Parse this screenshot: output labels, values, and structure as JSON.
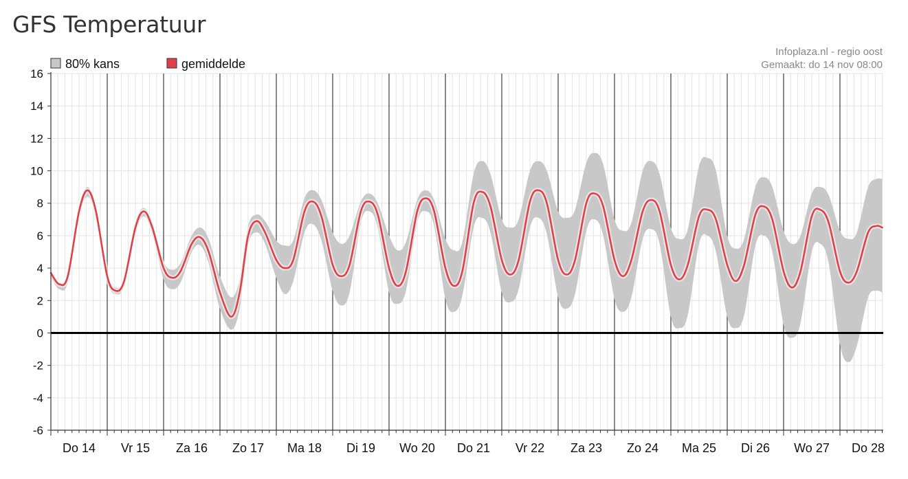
{
  "page": {
    "title": "GFS Temperatuur"
  },
  "chart_data": {
    "type": "area",
    "title": "",
    "xlabel": "",
    "ylabel": "",
    "ylim": [
      -6,
      16
    ],
    "yticks": [
      -6,
      -4,
      -2,
      0,
      2,
      4,
      6,
      8,
      10,
      12,
      14,
      16
    ],
    "grid": true,
    "legend_placement": "top-left",
    "source": "Infoplaza.nl - regio oost",
    "made": "Gemaakt: do 14 nov 08:00",
    "day_labels": [
      "Do 14",
      "Vr 15",
      "Za 16",
      "Zo 17",
      "Ma 18",
      "Di 19",
      "Wo 20",
      "Do 21",
      "Vr 22",
      "Za 23",
      "Zo 24",
      "Ma 25",
      "Di 26",
      "Wo 27",
      "Do 28"
    ],
    "x_unit": "day offset from Do 14 00:00",
    "series": [
      {
        "name": "gemiddelde",
        "color": "#e0404a",
        "points": [
          [
            0.0,
            3.7
          ],
          [
            0.15,
            3.0
          ],
          [
            0.3,
            3.5
          ],
          [
            0.5,
            7.5
          ],
          [
            0.65,
            8.8
          ],
          [
            0.8,
            7.5
          ],
          [
            1.0,
            3.5
          ],
          [
            1.15,
            2.6
          ],
          [
            1.3,
            3.2
          ],
          [
            1.5,
            6.5
          ],
          [
            1.65,
            7.5
          ],
          [
            1.8,
            6.5
          ],
          [
            2.0,
            4.0
          ],
          [
            2.15,
            3.4
          ],
          [
            2.3,
            3.8
          ],
          [
            2.5,
            5.5
          ],
          [
            2.65,
            5.9
          ],
          [
            2.8,
            5.0
          ],
          [
            3.0,
            2.5
          ],
          [
            3.2,
            1.0
          ],
          [
            3.35,
            2.5
          ],
          [
            3.5,
            6.0
          ],
          [
            3.65,
            6.9
          ],
          [
            3.8,
            6.2
          ],
          [
            4.0,
            4.5
          ],
          [
            4.15,
            4.0
          ],
          [
            4.3,
            4.5
          ],
          [
            4.5,
            7.5
          ],
          [
            4.65,
            8.1
          ],
          [
            4.8,
            7.2
          ],
          [
            5.0,
            4.2
          ],
          [
            5.15,
            3.5
          ],
          [
            5.3,
            4.2
          ],
          [
            5.5,
            7.5
          ],
          [
            5.65,
            8.1
          ],
          [
            5.8,
            7.3
          ],
          [
            6.0,
            4.0
          ],
          [
            6.15,
            2.9
          ],
          [
            6.3,
            3.8
          ],
          [
            6.5,
            7.5
          ],
          [
            6.65,
            8.3
          ],
          [
            6.8,
            7.5
          ],
          [
            7.0,
            4.0
          ],
          [
            7.15,
            2.9
          ],
          [
            7.3,
            3.8
          ],
          [
            7.5,
            8.0
          ],
          [
            7.65,
            8.7
          ],
          [
            7.8,
            7.8
          ],
          [
            8.0,
            4.5
          ],
          [
            8.15,
            3.6
          ],
          [
            8.3,
            4.5
          ],
          [
            8.5,
            8.1
          ],
          [
            8.65,
            8.8
          ],
          [
            8.8,
            8.0
          ],
          [
            9.0,
            4.5
          ],
          [
            9.15,
            3.6
          ],
          [
            9.3,
            4.5
          ],
          [
            9.5,
            8.0
          ],
          [
            9.65,
            8.6
          ],
          [
            9.8,
            7.8
          ],
          [
            10.0,
            4.5
          ],
          [
            10.15,
            3.5
          ],
          [
            10.3,
            4.5
          ],
          [
            10.5,
            7.5
          ],
          [
            10.65,
            8.2
          ],
          [
            10.8,
            7.5
          ],
          [
            11.0,
            4.2
          ],
          [
            11.15,
            3.3
          ],
          [
            11.3,
            4.2
          ],
          [
            11.5,
            7.2
          ],
          [
            11.65,
            7.6
          ],
          [
            11.8,
            7.0
          ],
          [
            12.0,
            4.2
          ],
          [
            12.15,
            3.2
          ],
          [
            12.3,
            4.2
          ],
          [
            12.5,
            7.3
          ],
          [
            12.65,
            7.8
          ],
          [
            12.8,
            7.0
          ],
          [
            13.0,
            3.8
          ],
          [
            13.15,
            2.8
          ],
          [
            13.3,
            3.8
          ],
          [
            13.5,
            7.2
          ],
          [
            13.65,
            7.6
          ],
          [
            13.8,
            6.8
          ],
          [
            14.0,
            3.8
          ],
          [
            14.15,
            3.1
          ],
          [
            14.3,
            3.8
          ],
          [
            14.5,
            6.2
          ],
          [
            14.65,
            6.6
          ],
          [
            14.75,
            6.5
          ]
        ]
      },
      {
        "name": "80% kans",
        "color": "#c8c8c8",
        "upper": [
          [
            0.0,
            3.8
          ],
          [
            0.15,
            3.1
          ],
          [
            0.3,
            3.6
          ],
          [
            0.5,
            7.7
          ],
          [
            0.65,
            9.0
          ],
          [
            0.8,
            7.7
          ],
          [
            1.0,
            3.7
          ],
          [
            1.15,
            2.8
          ],
          [
            1.3,
            3.4
          ],
          [
            1.5,
            6.8
          ],
          [
            1.65,
            7.7
          ],
          [
            1.8,
            6.8
          ],
          [
            2.0,
            4.4
          ],
          [
            2.15,
            3.9
          ],
          [
            2.3,
            4.3
          ],
          [
            2.5,
            6.0
          ],
          [
            2.65,
            6.5
          ],
          [
            2.8,
            5.8
          ],
          [
            3.0,
            3.5
          ],
          [
            3.2,
            2.2
          ],
          [
            3.35,
            3.3
          ],
          [
            3.5,
            6.6
          ],
          [
            3.65,
            7.3
          ],
          [
            3.8,
            6.9
          ],
          [
            4.0,
            5.7
          ],
          [
            4.15,
            5.4
          ],
          [
            4.3,
            5.7
          ],
          [
            4.5,
            8.3
          ],
          [
            4.65,
            8.8
          ],
          [
            4.8,
            8.2
          ],
          [
            5.0,
            6.2
          ],
          [
            5.15,
            5.5
          ],
          [
            5.3,
            6.0
          ],
          [
            5.5,
            8.1
          ],
          [
            5.65,
            8.6
          ],
          [
            5.8,
            8.0
          ],
          [
            6.0,
            6.0
          ],
          [
            6.15,
            5.1
          ],
          [
            6.3,
            5.6
          ],
          [
            6.5,
            8.2
          ],
          [
            6.65,
            8.8
          ],
          [
            6.8,
            8.2
          ],
          [
            7.0,
            5.8
          ],
          [
            7.15,
            5.1
          ],
          [
            7.3,
            5.6
          ],
          [
            7.5,
            9.8
          ],
          [
            7.65,
            10.6
          ],
          [
            7.8,
            9.8
          ],
          [
            8.0,
            7.0
          ],
          [
            8.15,
            6.5
          ],
          [
            8.3,
            7.0
          ],
          [
            8.5,
            10.0
          ],
          [
            8.65,
            10.6
          ],
          [
            8.8,
            10.0
          ],
          [
            9.0,
            7.5
          ],
          [
            9.15,
            7.1
          ],
          [
            9.3,
            7.6
          ],
          [
            9.5,
            10.5
          ],
          [
            9.65,
            11.1
          ],
          [
            9.8,
            10.4
          ],
          [
            10.0,
            7.0
          ],
          [
            10.15,
            6.3
          ],
          [
            10.3,
            6.8
          ],
          [
            10.5,
            10.0
          ],
          [
            10.65,
            10.6
          ],
          [
            10.8,
            9.8
          ],
          [
            11.0,
            6.5
          ],
          [
            11.15,
            5.8
          ],
          [
            11.3,
            6.4
          ],
          [
            11.5,
            10.3
          ],
          [
            11.65,
            10.8
          ],
          [
            11.8,
            10.0
          ],
          [
            12.0,
            6.0
          ],
          [
            12.15,
            5.2
          ],
          [
            12.3,
            5.8
          ],
          [
            12.5,
            9.0
          ],
          [
            12.65,
            9.6
          ],
          [
            12.8,
            9.0
          ],
          [
            13.0,
            6.3
          ],
          [
            13.15,
            5.5
          ],
          [
            13.3,
            6.0
          ],
          [
            13.5,
            8.6
          ],
          [
            13.65,
            9.0
          ],
          [
            13.8,
            8.5
          ],
          [
            14.0,
            6.3
          ],
          [
            14.15,
            5.8
          ],
          [
            14.3,
            6.2
          ],
          [
            14.5,
            9.0
          ],
          [
            14.65,
            9.5
          ],
          [
            14.75,
            9.5
          ]
        ],
        "lower": [
          [
            0.0,
            3.4
          ],
          [
            0.15,
            2.7
          ],
          [
            0.3,
            3.1
          ],
          [
            0.5,
            7.1
          ],
          [
            0.65,
            8.4
          ],
          [
            0.8,
            7.1
          ],
          [
            1.0,
            3.2
          ],
          [
            1.15,
            2.4
          ],
          [
            1.3,
            2.9
          ],
          [
            1.5,
            6.1
          ],
          [
            1.65,
            7.2
          ],
          [
            1.8,
            6.1
          ],
          [
            2.0,
            3.3
          ],
          [
            2.15,
            2.7
          ],
          [
            2.3,
            3.1
          ],
          [
            2.5,
            5.0
          ],
          [
            2.65,
            5.4
          ],
          [
            2.8,
            4.3
          ],
          [
            3.0,
            1.5
          ],
          [
            3.2,
            0.2
          ],
          [
            3.35,
            1.5
          ],
          [
            3.5,
            5.4
          ],
          [
            3.65,
            6.2
          ],
          [
            3.8,
            5.5
          ],
          [
            4.0,
            3.4
          ],
          [
            4.15,
            2.4
          ],
          [
            4.3,
            3.2
          ],
          [
            4.5,
            6.2
          ],
          [
            4.65,
            6.7
          ],
          [
            4.8,
            5.7
          ],
          [
            5.0,
            2.6
          ],
          [
            5.15,
            1.7
          ],
          [
            5.3,
            2.5
          ],
          [
            5.5,
            6.8
          ],
          [
            5.65,
            7.5
          ],
          [
            5.8,
            6.5
          ],
          [
            6.0,
            2.5
          ],
          [
            6.15,
            1.8
          ],
          [
            6.3,
            2.6
          ],
          [
            6.5,
            6.8
          ],
          [
            6.65,
            7.5
          ],
          [
            6.8,
            6.6
          ],
          [
            7.0,
            2.1
          ],
          [
            7.15,
            1.3
          ],
          [
            7.3,
            2.3
          ],
          [
            7.5,
            6.5
          ],
          [
            7.65,
            7.1
          ],
          [
            7.8,
            6.2
          ],
          [
            8.0,
            2.5
          ],
          [
            8.15,
            1.9
          ],
          [
            8.3,
            2.7
          ],
          [
            8.5,
            6.5
          ],
          [
            8.65,
            7.1
          ],
          [
            8.8,
            6.1
          ],
          [
            9.0,
            2.2
          ],
          [
            9.15,
            1.5
          ],
          [
            9.3,
            2.4
          ],
          [
            9.5,
            6.3
          ],
          [
            9.65,
            7.0
          ],
          [
            9.8,
            6.0
          ],
          [
            10.0,
            2.1
          ],
          [
            10.15,
            1.3
          ],
          [
            10.3,
            2.2
          ],
          [
            10.5,
            5.8
          ],
          [
            10.65,
            6.4
          ],
          [
            10.8,
            5.5
          ],
          [
            11.0,
            1.0
          ],
          [
            11.15,
            0.3
          ],
          [
            11.3,
            1.1
          ],
          [
            11.5,
            5.5
          ],
          [
            11.65,
            6.0
          ],
          [
            11.8,
            5.0
          ],
          [
            12.0,
            1.0
          ],
          [
            12.15,
            0.3
          ],
          [
            12.3,
            1.1
          ],
          [
            12.5,
            5.4
          ],
          [
            12.65,
            6.0
          ],
          [
            12.8,
            5.0
          ],
          [
            13.0,
            0.5
          ],
          [
            13.15,
            -0.3
          ],
          [
            13.3,
            0.6
          ],
          [
            13.5,
            5.0
          ],
          [
            13.65,
            5.5
          ],
          [
            13.8,
            4.3
          ],
          [
            14.0,
            -0.7
          ],
          [
            14.15,
            -1.8
          ],
          [
            14.3,
            -0.8
          ],
          [
            14.5,
            2.2
          ],
          [
            14.65,
            2.6
          ],
          [
            14.75,
            2.5
          ]
        ]
      }
    ]
  }
}
